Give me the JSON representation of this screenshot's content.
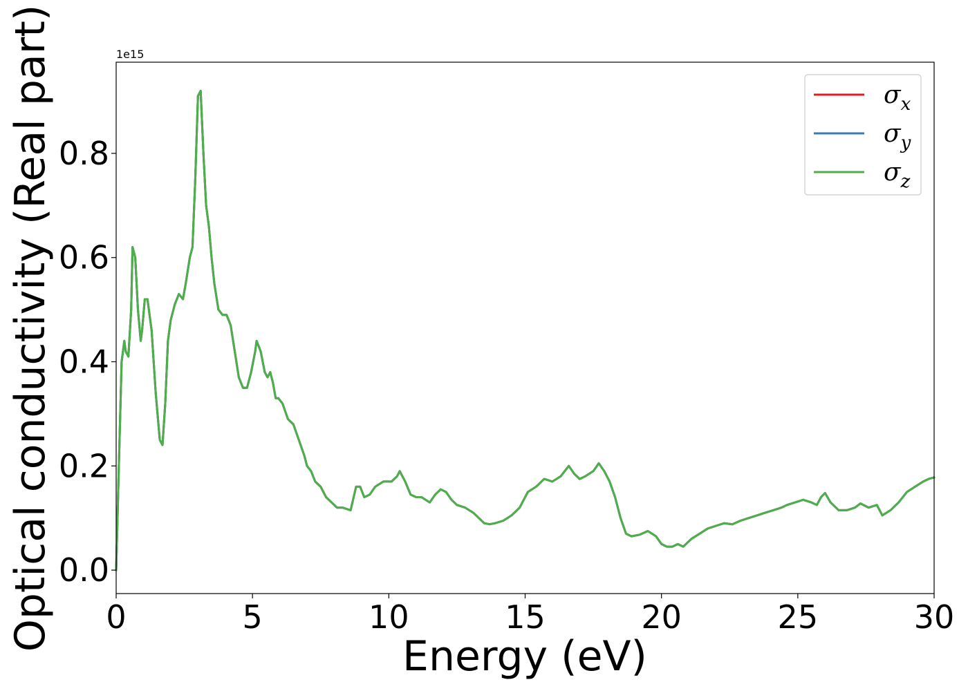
{
  "chart_data": {
    "type": "line",
    "xlabel": "Energy (eV)",
    "ylabel": "Optical conductivity (Real part)",
    "offset_text": "1e15",
    "xlim": [
      0,
      30
    ],
    "ylim": [
      -0.045,
      0.975
    ],
    "xticks": [
      0,
      5,
      10,
      15,
      20,
      25,
      30
    ],
    "yticks": [
      0.0,
      0.2,
      0.4,
      0.6,
      0.8
    ],
    "xtick_labels": [
      "0",
      "5",
      "10",
      "15",
      "20",
      "25",
      "30"
    ],
    "ytick_labels": [
      "0.0",
      "0.2",
      "0.4",
      "0.6",
      "0.8"
    ],
    "grid": false,
    "legend_position": "top-right",
    "series": [
      {
        "name": "σx",
        "symbol": "σ",
        "sub": "x",
        "color": "#e41a1c"
      },
      {
        "name": "σy",
        "symbol": "σ",
        "sub": "y",
        "color": "#377eb8"
      },
      {
        "name": "σz",
        "symbol": "σ",
        "sub": "z",
        "color": "#4daf4a"
      }
    ],
    "x": [
      0.0,
      0.1,
      0.2,
      0.3,
      0.35,
      0.45,
      0.55,
      0.6,
      0.7,
      0.8,
      0.9,
      0.95,
      1.05,
      1.15,
      1.3,
      1.45,
      1.6,
      1.7,
      1.8,
      1.9,
      2.0,
      2.15,
      2.3,
      2.45,
      2.55,
      2.7,
      2.8,
      2.9,
      3.0,
      3.1,
      3.2,
      3.3,
      3.4,
      3.5,
      3.6,
      3.75,
      3.9,
      4.05,
      4.2,
      4.35,
      4.5,
      4.65,
      4.8,
      4.95,
      5.1,
      5.15,
      5.3,
      5.45,
      5.55,
      5.65,
      5.75,
      5.85,
      5.95,
      6.1,
      6.3,
      6.5,
      6.7,
      6.9,
      7.0,
      7.15,
      7.3,
      7.5,
      7.7,
      7.9,
      8.1,
      8.3,
      8.6,
      8.8,
      8.95,
      9.1,
      9.3,
      9.5,
      9.8,
      10.1,
      10.3,
      10.4,
      10.6,
      10.8,
      11.0,
      11.2,
      11.5,
      11.7,
      11.9,
      12.1,
      12.3,
      12.5,
      12.8,
      13.1,
      13.3,
      13.5,
      13.7,
      13.9,
      14.2,
      14.5,
      14.8,
      15.1,
      15.4,
      15.7,
      16.0,
      16.3,
      16.6,
      16.8,
      17.0,
      17.2,
      17.5,
      17.7,
      17.9,
      18.1,
      18.3,
      18.5,
      18.7,
      18.9,
      19.2,
      19.5,
      19.8,
      20.0,
      20.2,
      20.4,
      20.6,
      20.8,
      21.1,
      21.4,
      21.7,
      22.0,
      22.3,
      22.6,
      22.9,
      23.2,
      23.5,
      23.8,
      24.1,
      24.4,
      24.6,
      24.9,
      25.2,
      25.5,
      25.7,
      25.85,
      26.0,
      26.2,
      26.5,
      26.8,
      27.1,
      27.3,
      27.6,
      27.9,
      28.1,
      28.4,
      28.7,
      29.0,
      29.3,
      29.6,
      29.8,
      30.0
    ],
    "y": [
      0.0,
      0.2,
      0.4,
      0.44,
      0.42,
      0.41,
      0.5,
      0.62,
      0.6,
      0.5,
      0.44,
      0.46,
      0.52,
      0.52,
      0.46,
      0.34,
      0.25,
      0.24,
      0.32,
      0.44,
      0.48,
      0.51,
      0.53,
      0.52,
      0.55,
      0.6,
      0.62,
      0.75,
      0.91,
      0.92,
      0.8,
      0.7,
      0.66,
      0.6,
      0.55,
      0.5,
      0.49,
      0.49,
      0.47,
      0.42,
      0.37,
      0.35,
      0.35,
      0.38,
      0.42,
      0.44,
      0.42,
      0.38,
      0.37,
      0.38,
      0.36,
      0.33,
      0.33,
      0.32,
      0.29,
      0.28,
      0.25,
      0.22,
      0.2,
      0.19,
      0.17,
      0.16,
      0.14,
      0.13,
      0.12,
      0.12,
      0.115,
      0.16,
      0.16,
      0.14,
      0.145,
      0.16,
      0.17,
      0.17,
      0.18,
      0.19,
      0.17,
      0.145,
      0.14,
      0.14,
      0.13,
      0.145,
      0.155,
      0.15,
      0.135,
      0.125,
      0.12,
      0.11,
      0.1,
      0.09,
      0.088,
      0.09,
      0.095,
      0.105,
      0.12,
      0.15,
      0.16,
      0.175,
      0.17,
      0.18,
      0.2,
      0.185,
      0.175,
      0.18,
      0.19,
      0.205,
      0.19,
      0.17,
      0.14,
      0.1,
      0.07,
      0.065,
      0.068,
      0.075,
      0.065,
      0.05,
      0.045,
      0.045,
      0.05,
      0.045,
      0.06,
      0.07,
      0.08,
      0.085,
      0.09,
      0.088,
      0.095,
      0.1,
      0.105,
      0.11,
      0.115,
      0.12,
      0.125,
      0.13,
      0.135,
      0.13,
      0.125,
      0.14,
      0.148,
      0.13,
      0.115,
      0.115,
      0.12,
      0.128,
      0.12,
      0.125,
      0.105,
      0.115,
      0.13,
      0.15,
      0.16,
      0.17,
      0.175,
      0.178
    ]
  }
}
